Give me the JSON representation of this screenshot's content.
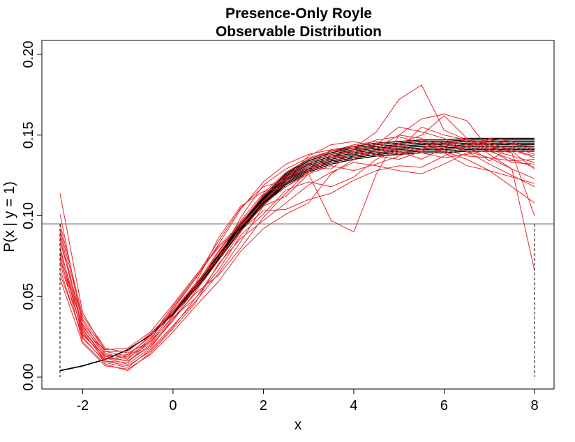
{
  "chart_data": {
    "type": "line",
    "title": "Presence-Only Royle",
    "subtitle": "Observable Distribution",
    "xlabel": "x",
    "ylabel": "P(x | y = 1)",
    "xlim": [
      -2.5,
      8
    ],
    "ylim": [
      0,
      0.2
    ],
    "x_ticks": [
      -2,
      0,
      2,
      4,
      6,
      8
    ],
    "x_tick_labels": [
      "-2",
      "0",
      "2",
      "4",
      "6",
      "8"
    ],
    "y_ticks": [
      0,
      0.05,
      0.1,
      0.15,
      0.2
    ],
    "y_tick_labels": [
      "0.00",
      "0.05",
      "0.10",
      "0.15",
      "0.20"
    ],
    "reference_line_y": 0.095,
    "domain_bounds_x": [
      -2.5,
      8
    ],
    "grid": false,
    "colors": {
      "true_curves": "#000000",
      "estimated_curves": "#e8262b",
      "reference": "#555555"
    },
    "true_curve": {
      "x": [
        -2.5,
        -2.0,
        -1.5,
        -1.0,
        -0.5,
        0.0,
        0.5,
        1.0,
        1.5,
        2.0,
        2.5,
        3.0,
        3.5,
        4.0,
        4.5,
        5.0,
        5.5,
        6.0,
        6.5,
        7.0,
        7.5,
        8.0
      ],
      "y": [
        0.004,
        0.007,
        0.011,
        0.017,
        0.026,
        0.039,
        0.055,
        0.073,
        0.092,
        0.108,
        0.121,
        0.129,
        0.134,
        0.137,
        0.139,
        0.14,
        0.141,
        0.141,
        0.142,
        0.142,
        0.142,
        0.142
      ],
      "band_offsets": [
        -0.002,
        -0.001,
        0.0,
        0.001,
        0.002,
        0.003,
        0.004,
        0.005,
        0.006
      ]
    },
    "estimated_series": {
      "x": [
        -2.5,
        -2.0,
        -1.5,
        -1.0,
        -0.5,
        0.0,
        0.5,
        1.0,
        1.5,
        2.0,
        2.5,
        3.0,
        3.5,
        4.0,
        4.5,
        5.0,
        5.5,
        6.0,
        6.5,
        7.0,
        7.5,
        8.0
      ],
      "y": [
        [
          0.114,
          0.04,
          0.016,
          0.013,
          0.026,
          0.042,
          0.061,
          0.081,
          0.095,
          0.113,
          0.124,
          0.13,
          0.129,
          0.14,
          0.144,
          0.155,
          0.152,
          0.148,
          0.14,
          0.136,
          0.129,
          0.066
        ],
        [
          0.101,
          0.032,
          0.013,
          0.01,
          0.02,
          0.036,
          0.055,
          0.074,
          0.099,
          0.119,
          0.129,
          0.136,
          0.14,
          0.142,
          0.152,
          0.172,
          0.181,
          0.153,
          0.147,
          0.142,
          0.139,
          0.1
        ],
        [
          0.095,
          0.038,
          0.018,
          0.015,
          0.022,
          0.04,
          0.058,
          0.086,
          0.106,
          0.115,
          0.118,
          0.126,
          0.097,
          0.09,
          0.126,
          0.15,
          0.16,
          0.163,
          0.159,
          0.141,
          0.133,
          0.132
        ],
        [
          0.09,
          0.03,
          0.012,
          0.008,
          0.018,
          0.036,
          0.052,
          0.063,
          0.08,
          0.099,
          0.114,
          0.128,
          0.137,
          0.136,
          0.14,
          0.145,
          0.15,
          0.162,
          0.148,
          0.14,
          0.135,
          0.13
        ],
        [
          0.087,
          0.028,
          0.01,
          0.009,
          0.023,
          0.043,
          0.061,
          0.082,
          0.104,
          0.121,
          0.132,
          0.138,
          0.141,
          0.143,
          0.142,
          0.138,
          0.142,
          0.146,
          0.144,
          0.134,
          0.143,
          0.138
        ],
        [
          0.084,
          0.035,
          0.014,
          0.012,
          0.021,
          0.038,
          0.056,
          0.077,
          0.097,
          0.114,
          0.127,
          0.135,
          0.14,
          0.144,
          0.146,
          0.144,
          0.139,
          0.136,
          0.138,
          0.141,
          0.137,
          0.133
        ],
        [
          0.081,
          0.025,
          0.009,
          0.006,
          0.017,
          0.032,
          0.047,
          0.064,
          0.084,
          0.106,
          0.112,
          0.126,
          0.131,
          0.128,
          0.132,
          0.137,
          0.142,
          0.14,
          0.135,
          0.128,
          0.118,
          0.108
        ],
        [
          0.079,
          0.031,
          0.015,
          0.011,
          0.024,
          0.041,
          0.058,
          0.074,
          0.091,
          0.103,
          0.104,
          0.11,
          0.114,
          0.122,
          0.128,
          0.131,
          0.13,
          0.137,
          0.143,
          0.147,
          0.144,
          0.143
        ],
        [
          0.077,
          0.027,
          0.011,
          0.013,
          0.022,
          0.037,
          0.049,
          0.066,
          0.088,
          0.101,
          0.116,
          0.121,
          0.118,
          0.124,
          0.135,
          0.141,
          0.155,
          0.15,
          0.147,
          0.143,
          0.141,
          0.136
        ],
        [
          0.075,
          0.022,
          0.008,
          0.004,
          0.015,
          0.03,
          0.046,
          0.07,
          0.086,
          0.097,
          0.108,
          0.119,
          0.127,
          0.133,
          0.131,
          0.128,
          0.126,
          0.132,
          0.139,
          0.144,
          0.14,
          0.129
        ],
        [
          0.072,
          0.033,
          0.016,
          0.016,
          0.027,
          0.041,
          0.057,
          0.078,
          0.096,
          0.112,
          0.125,
          0.133,
          0.138,
          0.14,
          0.138,
          0.143,
          0.147,
          0.144,
          0.142,
          0.148,
          0.146,
          0.14
        ],
        [
          0.07,
          0.029,
          0.012,
          0.01,
          0.019,
          0.035,
          0.053,
          0.072,
          0.093,
          0.109,
          0.121,
          0.13,
          0.133,
          0.139,
          0.137,
          0.135,
          0.14,
          0.146,
          0.14,
          0.132,
          0.125,
          0.118
        ],
        [
          0.067,
          0.024,
          0.01,
          0.007,
          0.016,
          0.031,
          0.049,
          0.069,
          0.09,
          0.107,
          0.118,
          0.127,
          0.136,
          0.141,
          0.147,
          0.149,
          0.145,
          0.141,
          0.137,
          0.136,
          0.134,
          0.135
        ],
        [
          0.064,
          0.026,
          0.013,
          0.014,
          0.025,
          0.044,
          0.062,
          0.084,
          0.105,
          0.118,
          0.122,
          0.131,
          0.141,
          0.138,
          0.145,
          0.14,
          0.135,
          0.142,
          0.148,
          0.138,
          0.129,
          0.123
        ],
        [
          0.061,
          0.021,
          0.007,
          0.005,
          0.014,
          0.028,
          0.044,
          0.059,
          0.078,
          0.092,
          0.101,
          0.108,
          0.126,
          0.135,
          0.142,
          0.15,
          0.148,
          0.139,
          0.131,
          0.128,
          0.124,
          0.12
        ],
        [
          0.092,
          0.036,
          0.017,
          0.018,
          0.028,
          0.045,
          0.063,
          0.08,
          0.094,
          0.109,
          0.123,
          0.137,
          0.144,
          0.146,
          0.143,
          0.139,
          0.141,
          0.144,
          0.147,
          0.145,
          0.141,
          0.137
        ]
      ]
    }
  }
}
